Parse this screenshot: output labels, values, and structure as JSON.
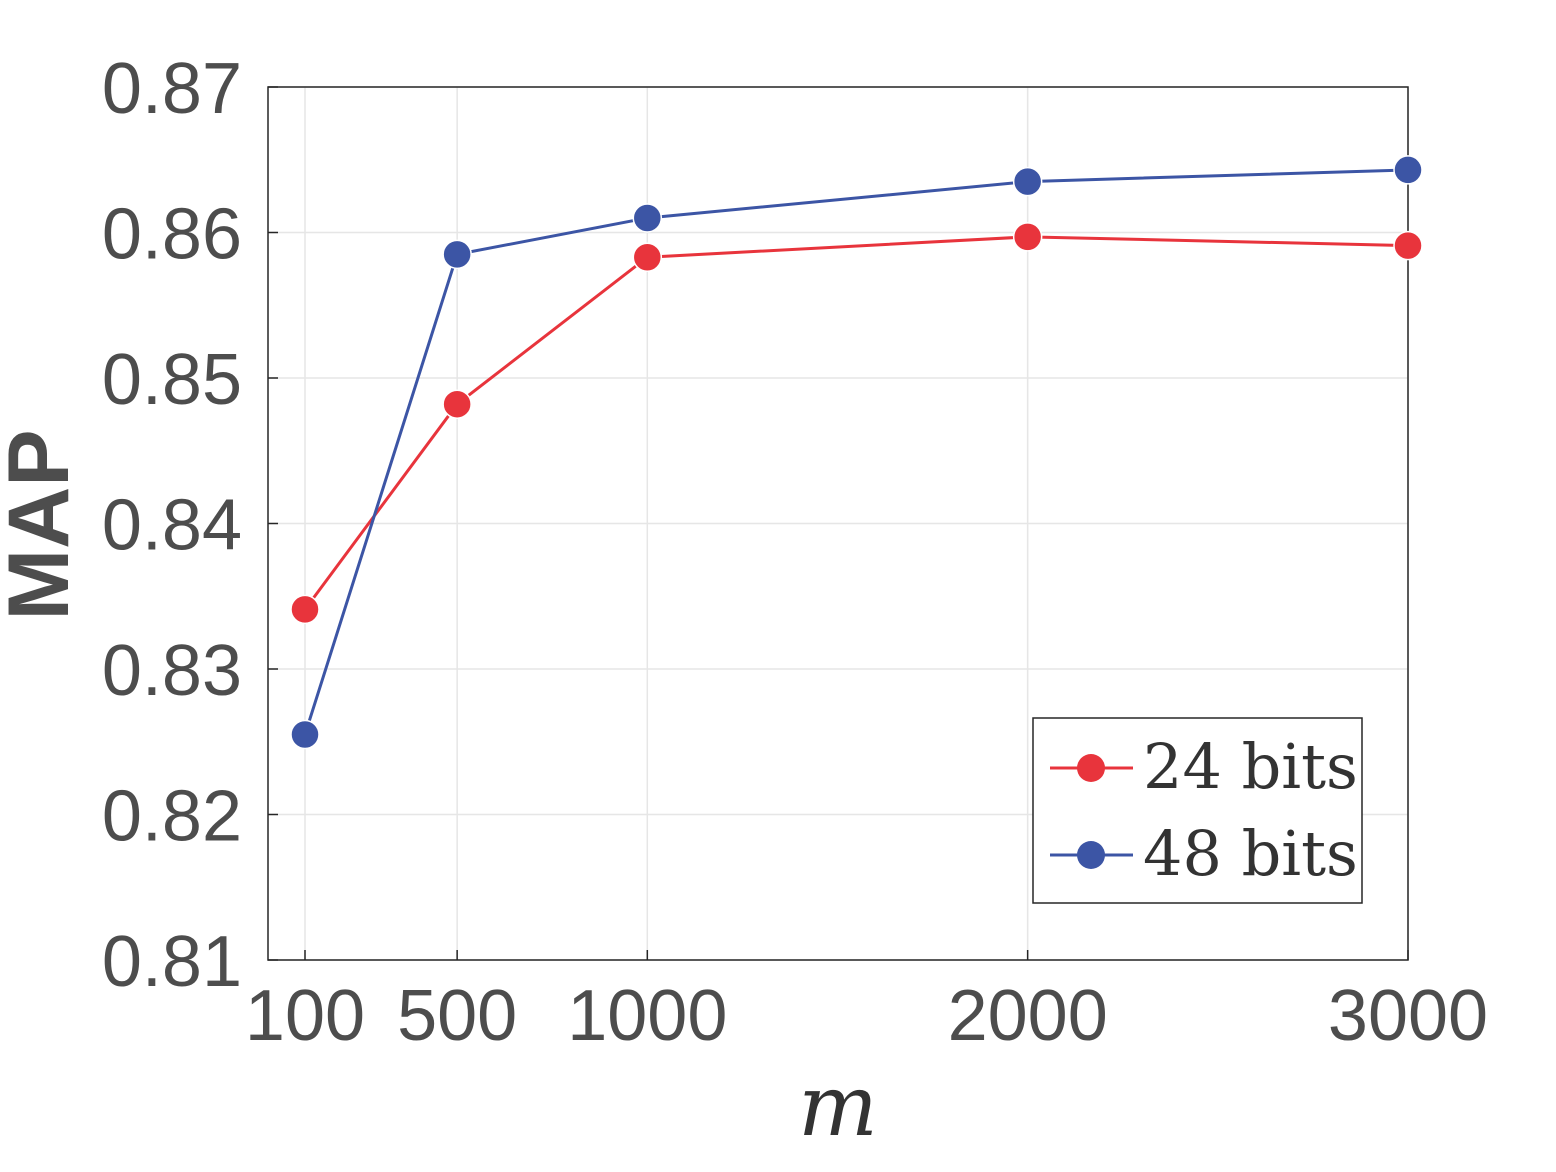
{
  "chart_data": {
    "type": "line",
    "x": [
      100,
      500,
      1000,
      2000,
      3000
    ],
    "xticks": [
      "100",
      "500",
      "1000",
      "2000",
      "3000"
    ],
    "yticks": [
      "0.81",
      "0.82",
      "0.83",
      "0.84",
      "0.85",
      "0.86",
      "0.87"
    ],
    "xlim": [
      0,
      3000
    ],
    "ylim": [
      0.81,
      0.87
    ],
    "xlabel": "m",
    "ylabel": "MAP",
    "grid": true,
    "legend_position": "bottom-right",
    "series": [
      {
        "name": "24 bits",
        "color": "#e8343c",
        "values": [
          0.8341,
          0.8482,
          0.8583,
          0.8597,
          0.8591
        ]
      },
      {
        "name": "48 bits",
        "color": "#3c55a5",
        "values": [
          0.8255,
          0.8585,
          0.861,
          0.8635,
          0.8643
        ]
      }
    ]
  }
}
